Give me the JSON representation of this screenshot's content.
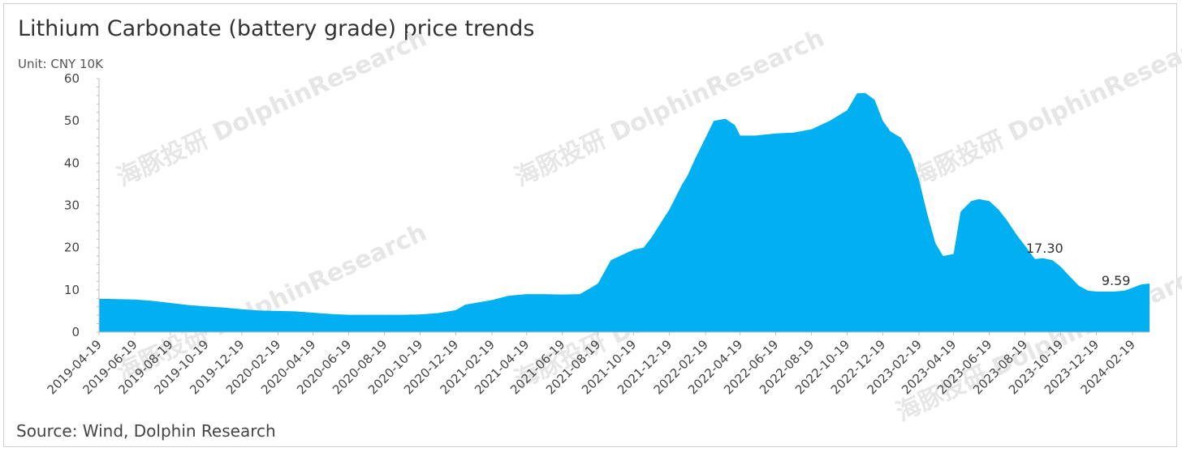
{
  "chart_data": {
    "type": "area",
    "title": "Lithium Carbonate (battery grade) price trends",
    "unit_label": "Unit: CNY 10K",
    "source": "Source: Wind, Dolphin Research",
    "watermark": "海豚投研 DolphinResearch",
    "color": "#00b0f0",
    "ylim": [
      0,
      60
    ],
    "yticks": [
      0,
      10,
      20,
      30,
      40,
      50,
      60
    ],
    "xlim": [
      "2019-04-19",
      "2024-03-19"
    ],
    "grid": false,
    "legend": "none",
    "xtick_labels": [
      "2019-04-19",
      "2019-06-19",
      "2019-08-19",
      "2019-10-19",
      "2019-12-19",
      "2020-02-19",
      "2020-04-19",
      "2020-06-19",
      "2020-08-19",
      "2020-10-19",
      "2020-12-19",
      "2021-02-19",
      "2021-04-19",
      "2021-06-19",
      "2021-08-19",
      "2021-10-19",
      "2021-12-19",
      "2022-02-19",
      "2022-04-19",
      "2022-06-19",
      "2022-08-19",
      "2022-10-19",
      "2022-12-19",
      "2023-02-19",
      "2023-04-19",
      "2023-06-19",
      "2023-08-19",
      "2023-10-19",
      "2023-12-19",
      "2024-02-19"
    ],
    "points": [
      [
        "2019-04-19",
        7.9
      ],
      [
        "2019-05-19",
        7.8
      ],
      [
        "2019-06-19",
        7.7
      ],
      [
        "2019-07-19",
        7.4
      ],
      [
        "2019-08-19",
        6.9
      ],
      [
        "2019-09-19",
        6.4
      ],
      [
        "2019-10-19",
        6.1
      ],
      [
        "2019-11-19",
        5.8
      ],
      [
        "2019-12-19",
        5.4
      ],
      [
        "2020-01-19",
        5.1
      ],
      [
        "2020-02-19",
        5.0
      ],
      [
        "2020-03-19",
        4.9
      ],
      [
        "2020-04-19",
        4.6
      ],
      [
        "2020-05-19",
        4.3
      ],
      [
        "2020-06-19",
        4.1
      ],
      [
        "2020-07-19",
        4.1
      ],
      [
        "2020-08-19",
        4.1
      ],
      [
        "2020-09-19",
        4.1
      ],
      [
        "2020-10-19",
        4.2
      ],
      [
        "2020-11-19",
        4.5
      ],
      [
        "2020-12-19",
        5.2
      ],
      [
        "2021-01-04",
        6.5
      ],
      [
        "2021-02-19",
        7.6
      ],
      [
        "2021-03-19",
        8.6
      ],
      [
        "2021-04-19",
        9.0
      ],
      [
        "2021-05-19",
        9.0
      ],
      [
        "2021-06-19",
        8.9
      ],
      [
        "2021-07-19",
        9.0
      ],
      [
        "2021-08-01",
        10.0
      ],
      [
        "2021-08-19",
        11.5
      ],
      [
        "2021-09-10",
        17.0
      ],
      [
        "2021-09-25",
        18.0
      ],
      [
        "2021-10-19",
        19.5
      ],
      [
        "2021-11-05",
        20.0
      ],
      [
        "2021-11-19",
        22.5
      ],
      [
        "2021-12-05",
        26.0
      ],
      [
        "2021-12-19",
        29.0
      ],
      [
        "2022-01-10",
        35.0
      ],
      [
        "2022-01-19",
        37.0
      ],
      [
        "2022-02-01",
        41.0
      ],
      [
        "2022-02-19",
        46.0
      ],
      [
        "2022-03-05",
        50.0
      ],
      [
        "2022-03-25",
        50.5
      ],
      [
        "2022-04-10",
        49.0
      ],
      [
        "2022-04-19",
        46.5
      ],
      [
        "2022-05-15",
        46.5
      ],
      [
        "2022-06-19",
        47.0
      ],
      [
        "2022-07-19",
        47.2
      ],
      [
        "2022-08-19",
        48.0
      ],
      [
        "2022-09-19",
        50.0
      ],
      [
        "2022-10-19",
        52.5
      ],
      [
        "2022-11-05",
        56.5
      ],
      [
        "2022-11-19",
        56.6
      ],
      [
        "2022-12-05",
        55.0
      ],
      [
        "2022-12-19",
        50.0
      ],
      [
        "2023-01-01",
        47.5
      ],
      [
        "2023-01-19",
        46.0
      ],
      [
        "2023-02-05",
        42.0
      ],
      [
        "2023-02-19",
        36.0
      ],
      [
        "2023-03-05",
        28.0
      ],
      [
        "2023-03-19",
        21.0
      ],
      [
        "2023-04-01",
        18.0
      ],
      [
        "2023-04-19",
        18.5
      ],
      [
        "2023-05-01",
        28.5
      ],
      [
        "2023-05-19",
        31.0
      ],
      [
        "2023-06-01",
        31.5
      ],
      [
        "2023-06-19",
        31.0
      ],
      [
        "2023-07-05",
        29.0
      ],
      [
        "2023-07-19",
        26.5
      ],
      [
        "2023-08-05",
        23.0
      ],
      [
        "2023-08-19",
        20.5
      ],
      [
        "2023-09-05",
        17.3
      ],
      [
        "2023-09-19",
        17.5
      ],
      [
        "2023-10-05",
        17.0
      ],
      [
        "2023-10-19",
        15.5
      ],
      [
        "2023-11-05",
        13.0
      ],
      [
        "2023-11-19",
        11.0
      ],
      [
        "2023-12-05",
        9.8
      ],
      [
        "2023-12-19",
        9.6
      ],
      [
        "2024-01-05",
        9.59
      ],
      [
        "2024-01-19",
        9.6
      ],
      [
        "2024-02-05",
        9.8
      ],
      [
        "2024-02-19",
        10.5
      ],
      [
        "2024-03-05",
        11.3
      ],
      [
        "2024-03-19",
        11.5
      ]
    ],
    "annotations": [
      {
        "label": "17.30",
        "x": "2023-09-05",
        "y": 17.3
      },
      {
        "label": "9.59",
        "x": "2024-01-05",
        "y": 9.59
      }
    ]
  }
}
